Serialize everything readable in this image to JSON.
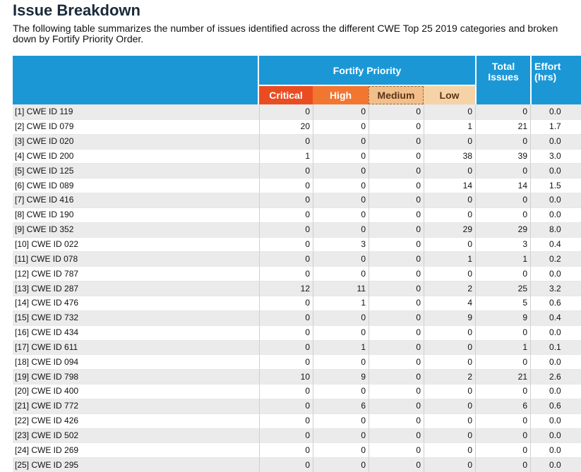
{
  "heading": "Issue Breakdown",
  "intro": "The following table summarizes the number of issues identified across the different CWE Top 25 2019 categories and broken down by Fortify Priority Order.",
  "table": {
    "group_header": "Fortify Priority",
    "total_header": "Total Issues",
    "effort_header": "Effort (hrs)",
    "priority_columns": [
      "Critical",
      "High",
      "Medium",
      "Low"
    ],
    "rows": [
      {
        "label": "[1] CWE ID 119",
        "critical": "0",
        "high": "0",
        "medium": "0",
        "low": "0",
        "total": "0",
        "effort": "0.0"
      },
      {
        "label": "[2] CWE ID 079",
        "critical": "20",
        "high": "0",
        "medium": "0",
        "low": "1",
        "total": "21",
        "effort": "1.7"
      },
      {
        "label": "[3] CWE ID 020",
        "critical": "0",
        "high": "0",
        "medium": "0",
        "low": "0",
        "total": "0",
        "effort": "0.0"
      },
      {
        "label": "[4] CWE ID 200",
        "critical": "1",
        "high": "0",
        "medium": "0",
        "low": "38",
        "total": "39",
        "effort": "3.0"
      },
      {
        "label": "[5] CWE ID 125",
        "critical": "0",
        "high": "0",
        "medium": "0",
        "low": "0",
        "total": "0",
        "effort": "0.0"
      },
      {
        "label": "[6] CWE ID 089",
        "critical": "0",
        "high": "0",
        "medium": "0",
        "low": "14",
        "total": "14",
        "effort": "1.5"
      },
      {
        "label": "[7] CWE ID 416",
        "critical": "0",
        "high": "0",
        "medium": "0",
        "low": "0",
        "total": "0",
        "effort": "0.0"
      },
      {
        "label": "[8] CWE ID 190",
        "critical": "0",
        "high": "0",
        "medium": "0",
        "low": "0",
        "total": "0",
        "effort": "0.0"
      },
      {
        "label": "[9] CWE ID 352",
        "critical": "0",
        "high": "0",
        "medium": "0",
        "low": "29",
        "total": "29",
        "effort": "8.0"
      },
      {
        "label": "[10] CWE ID 022",
        "critical": "0",
        "high": "3",
        "medium": "0",
        "low": "0",
        "total": "3",
        "effort": "0.4"
      },
      {
        "label": "[11] CWE ID 078",
        "critical": "0",
        "high": "0",
        "medium": "0",
        "low": "1",
        "total": "1",
        "effort": "0.2"
      },
      {
        "label": "[12] CWE ID 787",
        "critical": "0",
        "high": "0",
        "medium": "0",
        "low": "0",
        "total": "0",
        "effort": "0.0"
      },
      {
        "label": "[13] CWE ID 287",
        "critical": "12",
        "high": "11",
        "medium": "0",
        "low": "2",
        "total": "25",
        "effort": "3.2"
      },
      {
        "label": "[14] CWE ID 476",
        "critical": "0",
        "high": "1",
        "medium": "0",
        "low": "4",
        "total": "5",
        "effort": "0.6"
      },
      {
        "label": "[15] CWE ID 732",
        "critical": "0",
        "high": "0",
        "medium": "0",
        "low": "9",
        "total": "9",
        "effort": "0.4"
      },
      {
        "label": "[16] CWE ID 434",
        "critical": "0",
        "high": "0",
        "medium": "0",
        "low": "0",
        "total": "0",
        "effort": "0.0"
      },
      {
        "label": "[17] CWE ID 611",
        "critical": "0",
        "high": "1",
        "medium": "0",
        "low": "0",
        "total": "1",
        "effort": "0.1"
      },
      {
        "label": "[18] CWE ID 094",
        "critical": "0",
        "high": "0",
        "medium": "0",
        "low": "0",
        "total": "0",
        "effort": "0.0"
      },
      {
        "label": "[19] CWE ID 798",
        "critical": "10",
        "high": "9",
        "medium": "0",
        "low": "2",
        "total": "21",
        "effort": "2.6"
      },
      {
        "label": "[20] CWE ID 400",
        "critical": "0",
        "high": "0",
        "medium": "0",
        "low": "0",
        "total": "0",
        "effort": "0.0"
      },
      {
        "label": "[21] CWE ID 772",
        "critical": "0",
        "high": "6",
        "medium": "0",
        "low": "0",
        "total": "6",
        "effort": "0.6"
      },
      {
        "label": "[22] CWE ID 426",
        "critical": "0",
        "high": "0",
        "medium": "0",
        "low": "0",
        "total": "0",
        "effort": "0.0"
      },
      {
        "label": "[23] CWE ID 502",
        "critical": "0",
        "high": "0",
        "medium": "0",
        "low": "0",
        "total": "0",
        "effort": "0.0"
      },
      {
        "label": "[24] CWE ID 269",
        "critical": "0",
        "high": "0",
        "medium": "0",
        "low": "0",
        "total": "0",
        "effort": "0.0"
      },
      {
        "label": "[25] CWE ID 295",
        "critical": "0",
        "high": "0",
        "medium": "0",
        "low": "0",
        "total": "0",
        "effort": "0.0"
      }
    ]
  },
  "colors": {
    "header_blue": "#1c97d6",
    "critical": "#ea4c22",
    "high": "#f27630",
    "medium": "#f2bf8a",
    "low": "#f6d3a6",
    "row_alt": "#ebebeb"
  }
}
